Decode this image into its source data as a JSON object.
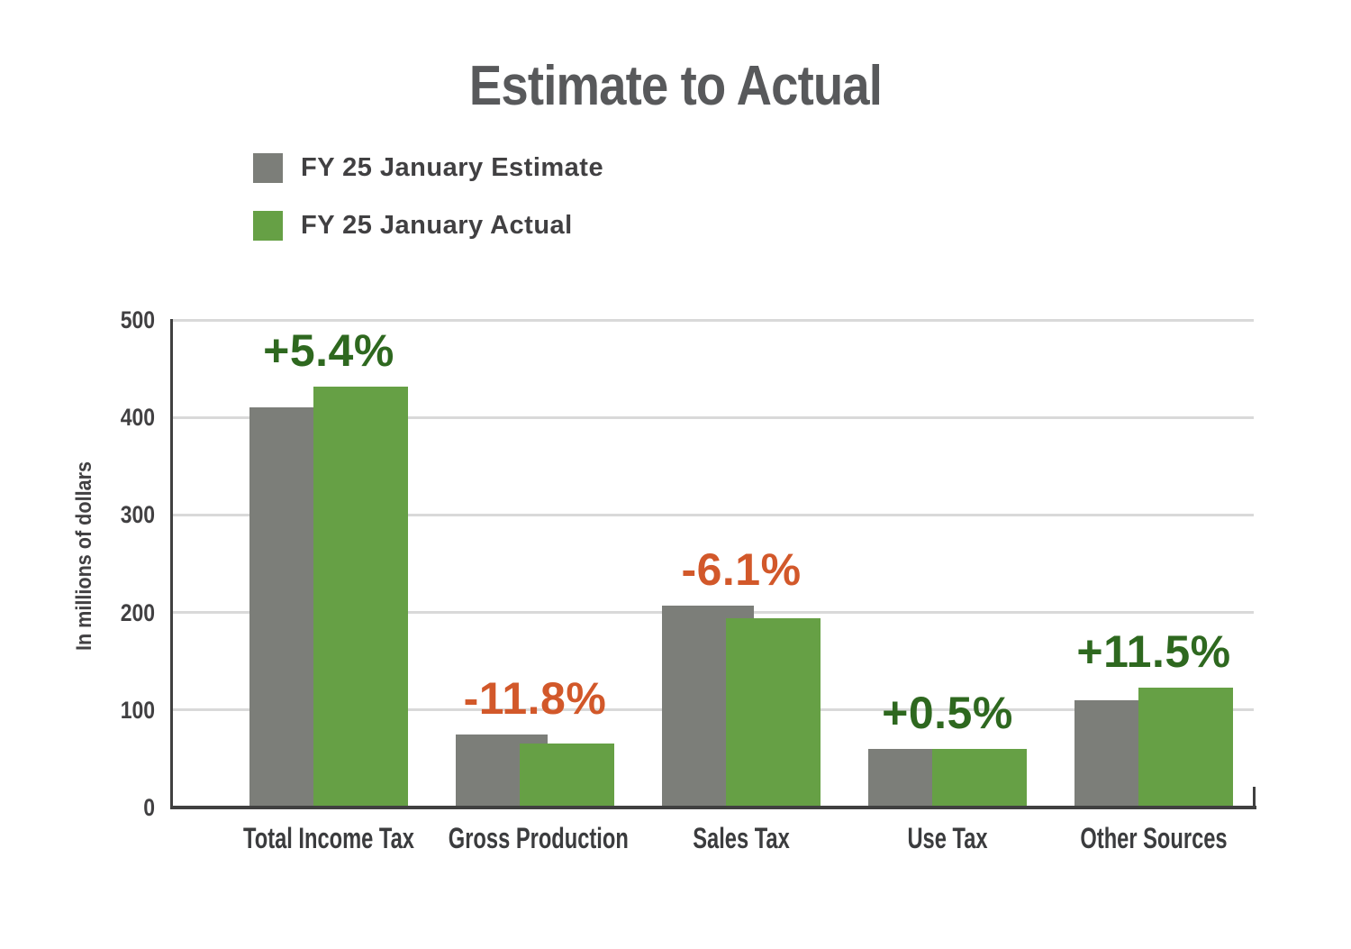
{
  "title": "Estimate to Actual",
  "y_axis": {
    "title": "In millions of dollars",
    "ticks": [
      0,
      100,
      200,
      300,
      400,
      500
    ]
  },
  "legend": {
    "items": [
      {
        "label": "FY 25 January Estimate",
        "color": "#7c7e79"
      },
      {
        "label": "FY 25 January Actual",
        "color": "#66a045"
      }
    ]
  },
  "colors": {
    "estimate_bar": "#7c7e79",
    "actual_bar": "#66a045",
    "positive_label": "#2e681f",
    "negative_label": "#d2582a",
    "title_text": "#58595b",
    "axis_text": "#414042",
    "gridline": "#d9d9d9",
    "axis_line": "#404040"
  },
  "chart_data": {
    "type": "bar",
    "title": "Estimate to Actual",
    "xlabel": "",
    "ylabel": "In millions of dollars",
    "ylim": [
      0,
      500
    ],
    "grid": true,
    "legend_position": "top-left",
    "categories": [
      "Total Income Tax",
      "Gross Production",
      "Sales Tax",
      "Use Tax",
      "Other Sources"
    ],
    "series": [
      {
        "name": "FY 25 January Estimate",
        "color": "#7c7e79",
        "values": [
          410,
          75,
          207,
          60,
          110
        ]
      },
      {
        "name": "FY 25 January Actual",
        "color": "#66a045",
        "values": [
          432,
          66,
          194,
          60.3,
          122.6
        ]
      }
    ],
    "annotations": [
      {
        "category": "Total Income Tax",
        "label": "+5.4%",
        "sentiment": "positive",
        "color": "#2e681f"
      },
      {
        "category": "Gross Production",
        "label": "-11.8%",
        "sentiment": "negative",
        "color": "#d2582a"
      },
      {
        "category": "Sales Tax",
        "label": "-6.1%",
        "sentiment": "negative",
        "color": "#d2582a"
      },
      {
        "category": "Use Tax",
        "label": "+0.5%",
        "sentiment": "positive",
        "color": "#2e681f"
      },
      {
        "category": "Other Sources",
        "label": "+11.5%",
        "sentiment": "positive",
        "color": "#2e681f"
      }
    ]
  }
}
